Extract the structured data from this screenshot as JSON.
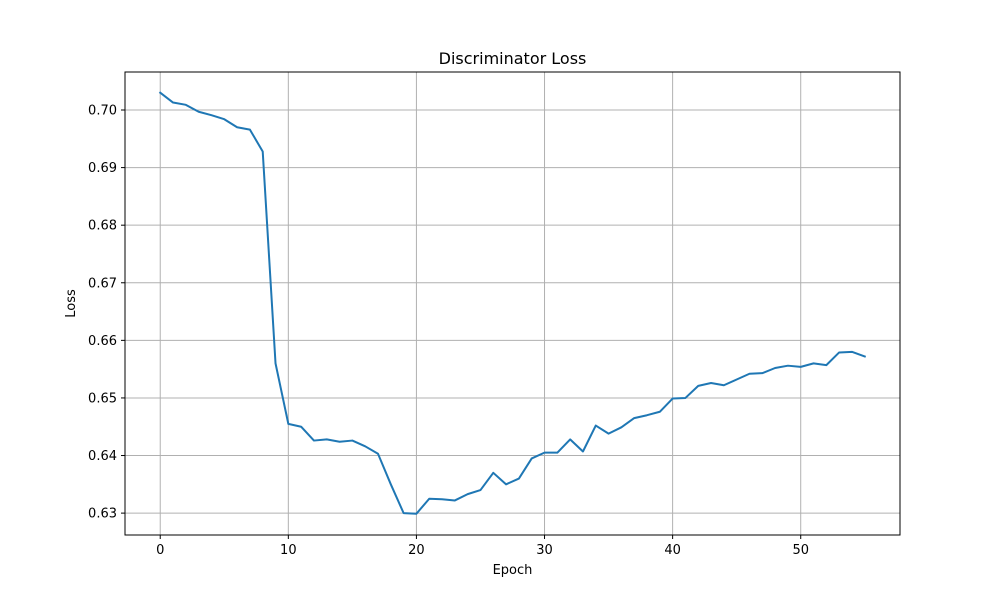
{
  "chart_data": {
    "type": "line",
    "title": "Discriminator Loss",
    "xlabel": "Epoch",
    "ylabel": "Loss",
    "xlim": [
      -2.75,
      57.75
    ],
    "ylim": [
      0.6262,
      0.7066
    ],
    "xticks": [
      0,
      10,
      20,
      30,
      40,
      50
    ],
    "yticks": [
      0.63,
      0.64,
      0.65,
      0.66,
      0.67,
      0.68,
      0.69,
      0.7
    ],
    "ytick_labels": [
      "0.63",
      "0.64",
      "0.65",
      "0.66",
      "0.67",
      "0.68",
      "0.69",
      "0.70"
    ],
    "grid": true,
    "line_color": "#1f77b4",
    "x": [
      0,
      1,
      2,
      3,
      4,
      5,
      6,
      7,
      8,
      9,
      10,
      11,
      12,
      13,
      14,
      15,
      16,
      17,
      18,
      19,
      20,
      21,
      22,
      23,
      24,
      25,
      26,
      27,
      28,
      29,
      30,
      31,
      32,
      33,
      34,
      35,
      36,
      37,
      38,
      39,
      40,
      41,
      42,
      43,
      44,
      45,
      46,
      47,
      48,
      49,
      50,
      51,
      52,
      53,
      54,
      55
    ],
    "series": [
      {
        "values": [
          0.703,
          0.7013,
          0.7009,
          0.6997,
          0.6991,
          0.6984,
          0.697,
          0.6966,
          0.6928,
          0.656,
          0.6455,
          0.645,
          0.6426,
          0.6428,
          0.6424,
          0.6426,
          0.6416,
          0.6403,
          0.635,
          0.63,
          0.6299,
          0.6325,
          0.6324,
          0.6322,
          0.6333,
          0.634,
          0.637,
          0.635,
          0.636,
          0.6395,
          0.6405,
          0.6405,
          0.6428,
          0.6407,
          0.6452,
          0.6438,
          0.6449,
          0.6465,
          0.647,
          0.6476,
          0.6499,
          0.65,
          0.6521,
          0.6526,
          0.6522,
          0.6532,
          0.6542,
          0.6543,
          0.6552,
          0.6556,
          0.6554,
          0.656,
          0.6557,
          0.6579,
          0.658,
          0.6572
        ]
      }
    ]
  }
}
